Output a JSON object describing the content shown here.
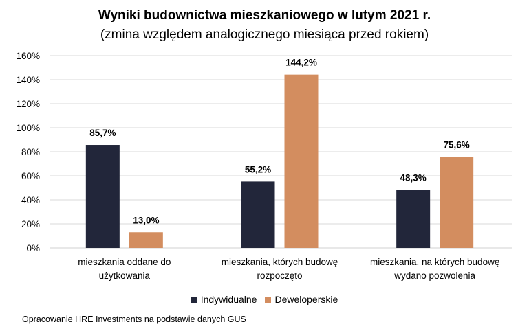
{
  "chart_data": {
    "type": "bar",
    "title": "Wyniki budownictwa mieszkaniowego w lutym 2021 r.",
    "subtitle": "(zmina względem analogicznego miesiąca przed rokiem)",
    "categories": [
      [
        "mieszkania oddane do",
        "użytkowania"
      ],
      [
        "mieszkania, których budowę",
        "rozpoczęto"
      ],
      [
        "mieszkania, na których budowę",
        "wydano pozwolenia"
      ]
    ],
    "series": [
      {
        "name": "Indywidualne",
        "color": "#22263a",
        "values": [
          85.7,
          55.2,
          48.3
        ],
        "labels": [
          "85,7%",
          "55,2%",
          "48,3%"
        ]
      },
      {
        "name": "Deweloperskie",
        "color": "#d38d5f",
        "values": [
          13.0,
          144.2,
          75.6
        ],
        "labels": [
          "13,0%",
          "144,2%",
          "75,6%"
        ]
      }
    ],
    "ylim": [
      0,
      160
    ],
    "yticks": [
      0,
      20,
      40,
      60,
      80,
      100,
      120,
      140,
      160
    ],
    "ytick_labels": [
      "0%",
      "20%",
      "40%",
      "60%",
      "80%",
      "100%",
      "120%",
      "140%",
      "160%"
    ],
    "grid": true,
    "legend": "bottom",
    "xlabel": "",
    "ylabel": ""
  },
  "source": "Opracowanie HRE Investments na podstawie danych GUS"
}
